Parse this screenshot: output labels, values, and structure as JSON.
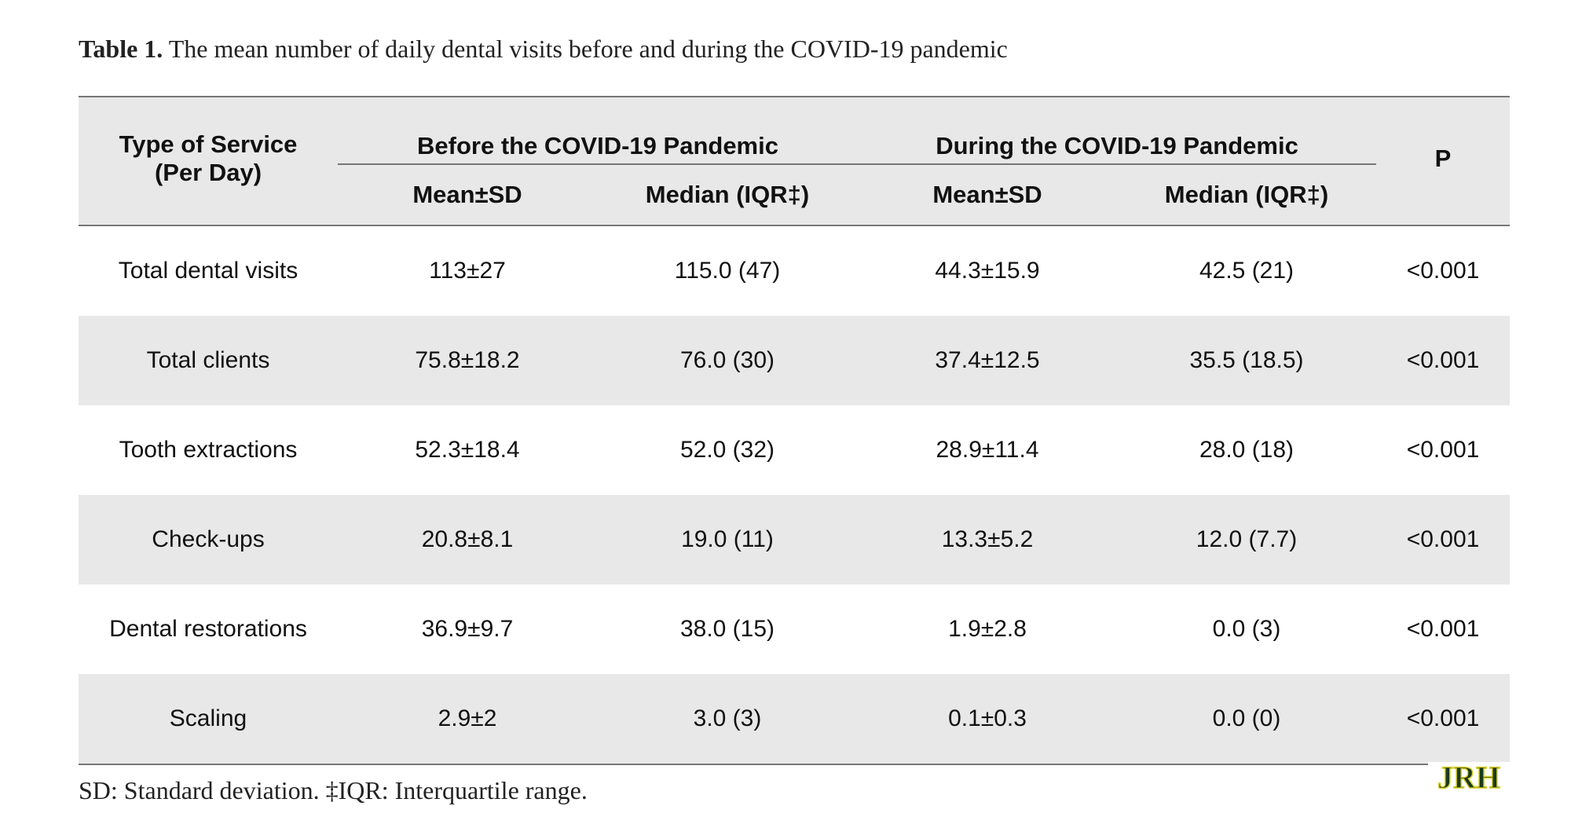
{
  "caption": {
    "label": "Table 1.",
    "text": " The mean number of daily dental visits before and during the COVID-19 pandemic"
  },
  "table": {
    "col_type_line1": "Type of Service",
    "col_type_line2": "(Per Day)",
    "group_before": "Before the COVID-19 Pandemic",
    "group_during": "During the COVID-19 Pandemic",
    "col_p": "P",
    "sub_mean_before": "Mean±SD",
    "sub_median_before": "Median (IQR‡)",
    "sub_mean_during": "Mean±SD",
    "sub_median_during": "Median (IQR‡)",
    "rows": [
      {
        "service": "Total dental visits",
        "mean_before": "113±27",
        "median_before": "115.0 (47)",
        "mean_during": "44.3±15.9",
        "median_during": "42.5 (21)",
        "p": "<0.001"
      },
      {
        "service": "Total clients",
        "mean_before": "75.8±18.2",
        "median_before": "76.0 (30)",
        "mean_during": "37.4±12.5",
        "median_during": "35.5 (18.5)",
        "p": "<0.001"
      },
      {
        "service": "Tooth extractions",
        "mean_before": "52.3±18.4",
        "median_before": "52.0 (32)",
        "mean_during": "28.9±11.4",
        "median_during": "28.0 (18)",
        "p": "<0.001"
      },
      {
        "service": "Check-ups",
        "mean_before": "20.8±8.1",
        "median_before": "19.0 (11)",
        "mean_during": "13.3±5.2",
        "median_during": "12.0 (7.7)",
        "p": "<0.001"
      },
      {
        "service": "Dental restorations",
        "mean_before": "36.9±9.7",
        "median_before": "38.0 (15)",
        "mean_during": "1.9±2.8",
        "median_during": "0.0 (3)",
        "p": "<0.001"
      },
      {
        "service": "Scaling",
        "mean_before": "2.9±2",
        "median_before": "3.0 (3)",
        "mean_during": "0.1±0.3",
        "median_during": "0.0 (0)",
        "p": "<0.001"
      }
    ]
  },
  "footnote": "SD: Standard deviation. ‡IQR: Interquartile range.",
  "logo": {
    "text": "JRH",
    "colors": {
      "primary": "#1a3a1a",
      "accent": "#d8d030"
    }
  },
  "colors": {
    "header_fill": "#e8e8e8",
    "rule": "#777777",
    "text": "#111111"
  }
}
